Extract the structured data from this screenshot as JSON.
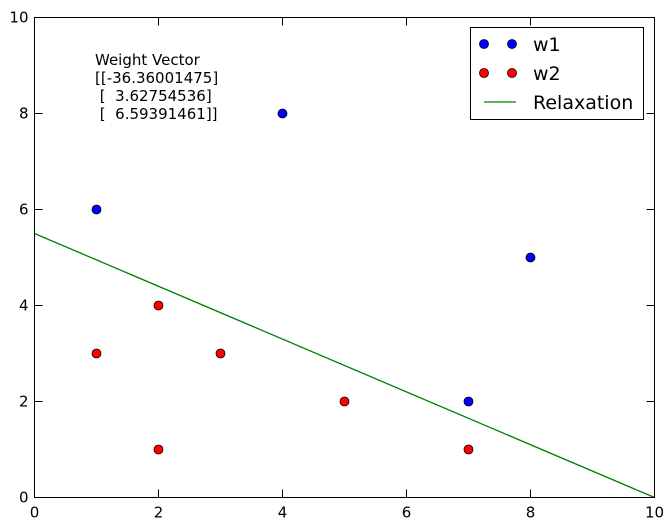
{
  "chart_data": {
    "type": "scatter",
    "xlim": [
      0,
      10
    ],
    "ylim": [
      0,
      10
    ],
    "xticks": [
      "0",
      "2",
      "4",
      "6",
      "8",
      "10"
    ],
    "yticks": [
      "0",
      "2",
      "4",
      "6",
      "8",
      "10"
    ],
    "grid": false,
    "legend_position": "top-right",
    "series": [
      {
        "name": "w1",
        "kind": "points",
        "color": "#0000ff",
        "points": [
          [
            1,
            6
          ],
          [
            4,
            8
          ],
          [
            8,
            5
          ],
          [
            7,
            2
          ]
        ]
      },
      {
        "name": "w2",
        "kind": "points",
        "color": "#ff0000",
        "points": [
          [
            2,
            4
          ],
          [
            1,
            3
          ],
          [
            3,
            3
          ],
          [
            5,
            2
          ],
          [
            2,
            1
          ],
          [
            7,
            1
          ]
        ]
      },
      {
        "name": "Relaxation",
        "kind": "line",
        "color": "#008000",
        "points": [
          [
            0,
            5.5
          ],
          [
            10,
            0
          ]
        ]
      }
    ],
    "annotation": {
      "lines": [
        "Weight Vector",
        "[[-36.36001475]",
        " [  3.62754536]",
        " [  6.59391461]]"
      ]
    }
  }
}
